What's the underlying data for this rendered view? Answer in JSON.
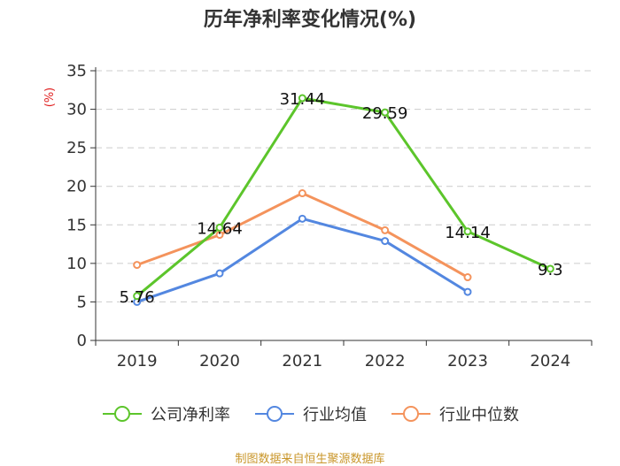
{
  "title": "历年净利率变化情况(%)",
  "source_note": "制图数据来自恒生聚源数据库",
  "colors": {
    "source": "#c9962a",
    "ylabel": "#e02020",
    "axis": "#333333",
    "grid": "#cccccc"
  },
  "chart_data": {
    "type": "line",
    "title": "历年净利率变化情况(%)",
    "ylabel": "(%)",
    "xlabel": "",
    "categories": [
      "2019",
      "2020",
      "2021",
      "2022",
      "2023",
      "2024"
    ],
    "ylim": [
      0,
      35
    ],
    "yticks": [
      0,
      5,
      10,
      15,
      20,
      25,
      30,
      35
    ],
    "grid": true,
    "legend_position": "bottom",
    "series": [
      {
        "name": "公司净利率",
        "color": "#5cc52b",
        "values": [
          5.76,
          14.64,
          31.44,
          29.59,
          14.14,
          9.3
        ],
        "labels": [
          "5.76",
          "14.64",
          "31.44",
          "29.59",
          "14.14",
          "9.3"
        ]
      },
      {
        "name": "行业均值",
        "color": "#5387e0",
        "values": [
          5.0,
          8.7,
          15.8,
          12.9,
          6.3,
          null
        ]
      },
      {
        "name": "行业中位数",
        "color": "#f4935c",
        "values": [
          9.8,
          13.7,
          19.1,
          14.3,
          8.2,
          null
        ]
      }
    ]
  }
}
